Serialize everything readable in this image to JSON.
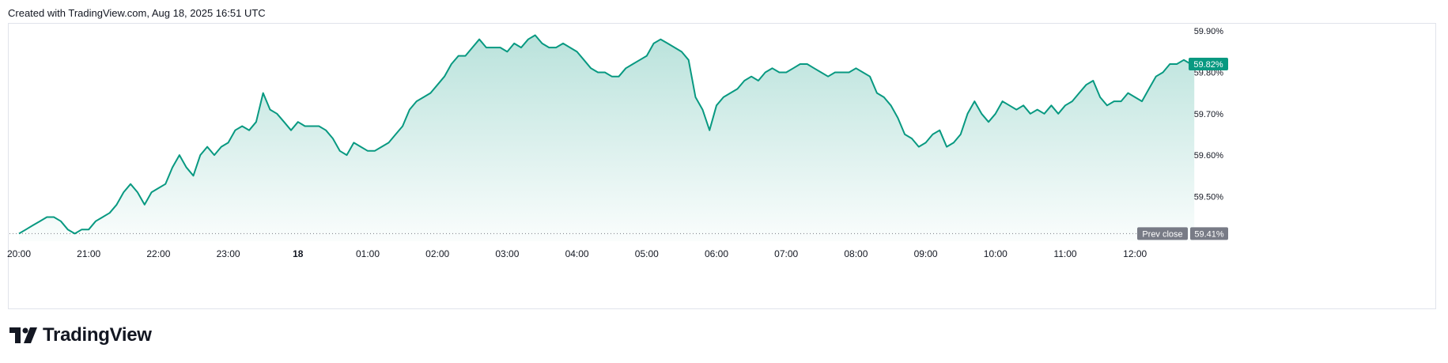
{
  "header": {
    "created_text": "Created with TradingView.com, Aug 18, 2025 16:51 UTC"
  },
  "brand": {
    "name": "TradingView",
    "icon": "tradingview-logo"
  },
  "colors": {
    "line": "#089981",
    "fill_top": "#089981",
    "prev_close_badge": "#787b86",
    "last_badge": "#089981",
    "grid": "#e0e3eb"
  },
  "chart_data": {
    "type": "area",
    "x_tick_labels": [
      "20:00",
      "21:00",
      "22:00",
      "23:00",
      "18",
      "01:00",
      "02:00",
      "03:00",
      "04:00",
      "05:00",
      "06:00",
      "07:00",
      "08:00",
      "09:00",
      "10:00",
      "11:00",
      "12:00"
    ],
    "y_tick_labels": [
      "59.90%",
      "59.80%",
      "59.70%",
      "59.60%",
      "59.50%"
    ],
    "y_ticks": [
      59.9,
      59.8,
      59.7,
      59.6,
      59.5
    ],
    "ylim": [
      59.405,
      59.91
    ],
    "x_unit": "hours since 20:00 Aug 17",
    "series": [
      {
        "points": [
          [
            0.0,
            59.41
          ],
          [
            0.1,
            59.42
          ],
          [
            0.2,
            59.43
          ],
          [
            0.3,
            59.44
          ],
          [
            0.4,
            59.45
          ],
          [
            0.5,
            59.45
          ],
          [
            0.6,
            59.44
          ],
          [
            0.7,
            59.42
          ],
          [
            0.8,
            59.41
          ],
          [
            0.9,
            59.42
          ],
          [
            1.0,
            59.42
          ],
          [
            1.1,
            59.44
          ],
          [
            1.2,
            59.45
          ],
          [
            1.3,
            59.46
          ],
          [
            1.4,
            59.48
          ],
          [
            1.5,
            59.51
          ],
          [
            1.6,
            59.53
          ],
          [
            1.7,
            59.51
          ],
          [
            1.8,
            59.48
          ],
          [
            1.9,
            59.51
          ],
          [
            2.0,
            59.52
          ],
          [
            2.1,
            59.53
          ],
          [
            2.2,
            59.57
          ],
          [
            2.3,
            59.6
          ],
          [
            2.4,
            59.57
          ],
          [
            2.5,
            59.55
          ],
          [
            2.6,
            59.6
          ],
          [
            2.7,
            59.62
          ],
          [
            2.8,
            59.6
          ],
          [
            2.9,
            59.62
          ],
          [
            3.0,
            59.63
          ],
          [
            3.1,
            59.66
          ],
          [
            3.2,
            59.67
          ],
          [
            3.3,
            59.66
          ],
          [
            3.4,
            59.68
          ],
          [
            3.5,
            59.75
          ],
          [
            3.6,
            59.71
          ],
          [
            3.7,
            59.7
          ],
          [
            3.8,
            59.68
          ],
          [
            3.9,
            59.66
          ],
          [
            4.0,
            59.68
          ],
          [
            4.1,
            59.67
          ],
          [
            4.2,
            59.67
          ],
          [
            4.3,
            59.67
          ],
          [
            4.4,
            59.66
          ],
          [
            4.5,
            59.64
          ],
          [
            4.6,
            59.61
          ],
          [
            4.7,
            59.6
          ],
          [
            4.8,
            59.63
          ],
          [
            4.9,
            59.62
          ],
          [
            5.0,
            59.61
          ],
          [
            5.1,
            59.61
          ],
          [
            5.2,
            59.62
          ],
          [
            5.3,
            59.63
          ],
          [
            5.4,
            59.65
          ],
          [
            5.5,
            59.67
          ],
          [
            5.6,
            59.71
          ],
          [
            5.7,
            59.73
          ],
          [
            5.8,
            59.74
          ],
          [
            5.9,
            59.75
          ],
          [
            6.0,
            59.77
          ],
          [
            6.1,
            59.79
          ],
          [
            6.2,
            59.82
          ],
          [
            6.3,
            59.84
          ],
          [
            6.4,
            59.84
          ],
          [
            6.5,
            59.86
          ],
          [
            6.6,
            59.88
          ],
          [
            6.7,
            59.86
          ],
          [
            6.8,
            59.86
          ],
          [
            6.9,
            59.86
          ],
          [
            7.0,
            59.85
          ],
          [
            7.1,
            59.87
          ],
          [
            7.2,
            59.86
          ],
          [
            7.3,
            59.88
          ],
          [
            7.4,
            59.89
          ],
          [
            7.5,
            59.87
          ],
          [
            7.6,
            59.86
          ],
          [
            7.7,
            59.86
          ],
          [
            7.8,
            59.87
          ],
          [
            7.9,
            59.86
          ],
          [
            8.0,
            59.85
          ],
          [
            8.1,
            59.83
          ],
          [
            8.2,
            59.81
          ],
          [
            8.3,
            59.8
          ],
          [
            8.4,
            59.8
          ],
          [
            8.5,
            59.79
          ],
          [
            8.6,
            59.79
          ],
          [
            8.7,
            59.81
          ],
          [
            8.8,
            59.82
          ],
          [
            8.9,
            59.83
          ],
          [
            9.0,
            59.84
          ],
          [
            9.1,
            59.87
          ],
          [
            9.2,
            59.88
          ],
          [
            9.3,
            59.87
          ],
          [
            9.4,
            59.86
          ],
          [
            9.5,
            59.85
          ],
          [
            9.6,
            59.83
          ],
          [
            9.7,
            59.74
          ],
          [
            9.8,
            59.71
          ],
          [
            9.9,
            59.66
          ],
          [
            10.0,
            59.72
          ],
          [
            10.1,
            59.74
          ],
          [
            10.2,
            59.75
          ],
          [
            10.3,
            59.76
          ],
          [
            10.4,
            59.78
          ],
          [
            10.5,
            59.79
          ],
          [
            10.6,
            59.78
          ],
          [
            10.7,
            59.8
          ],
          [
            10.8,
            59.81
          ],
          [
            10.9,
            59.8
          ],
          [
            11.0,
            59.8
          ],
          [
            11.1,
            59.81
          ],
          [
            11.2,
            59.82
          ],
          [
            11.3,
            59.82
          ],
          [
            11.4,
            59.81
          ],
          [
            11.5,
            59.8
          ],
          [
            11.6,
            59.79
          ],
          [
            11.7,
            59.8
          ],
          [
            11.8,
            59.8
          ],
          [
            11.9,
            59.8
          ],
          [
            12.0,
            59.81
          ],
          [
            12.1,
            59.8
          ],
          [
            12.2,
            59.79
          ],
          [
            12.3,
            59.75
          ],
          [
            12.4,
            59.74
          ],
          [
            12.5,
            59.72
          ],
          [
            12.6,
            59.69
          ],
          [
            12.7,
            59.65
          ],
          [
            12.8,
            59.64
          ],
          [
            12.9,
            59.62
          ],
          [
            13.0,
            59.63
          ],
          [
            13.1,
            59.65
          ],
          [
            13.2,
            59.66
          ],
          [
            13.3,
            59.62
          ],
          [
            13.4,
            59.63
          ],
          [
            13.5,
            59.65
          ],
          [
            13.6,
            59.7
          ],
          [
            13.7,
            59.73
          ],
          [
            13.8,
            59.7
          ],
          [
            13.9,
            59.68
          ],
          [
            14.0,
            59.7
          ],
          [
            14.1,
            59.73
          ],
          [
            14.2,
            59.72
          ],
          [
            14.3,
            59.71
          ],
          [
            14.4,
            59.72
          ],
          [
            14.5,
            59.7
          ],
          [
            14.6,
            59.71
          ],
          [
            14.7,
            59.7
          ],
          [
            14.8,
            59.72
          ],
          [
            14.9,
            59.7
          ],
          [
            15.0,
            59.72
          ],
          [
            15.1,
            59.73
          ],
          [
            15.2,
            59.75
          ],
          [
            15.3,
            59.77
          ],
          [
            15.4,
            59.78
          ],
          [
            15.5,
            59.74
          ],
          [
            15.6,
            59.72
          ],
          [
            15.7,
            59.73
          ],
          [
            15.8,
            59.73
          ],
          [
            15.9,
            59.75
          ],
          [
            16.0,
            59.74
          ],
          [
            16.1,
            59.73
          ],
          [
            16.2,
            59.76
          ],
          [
            16.3,
            59.79
          ],
          [
            16.4,
            59.8
          ],
          [
            16.5,
            59.82
          ],
          [
            16.6,
            59.82
          ],
          [
            16.7,
            59.83
          ],
          [
            16.8,
            59.82
          ],
          [
            16.85,
            59.82
          ]
        ]
      }
    ],
    "prev_close": {
      "label": "Prev close",
      "value_label": "59.41%",
      "value": 59.41
    },
    "last": {
      "value_label": "59.82%",
      "value": 59.82
    }
  }
}
